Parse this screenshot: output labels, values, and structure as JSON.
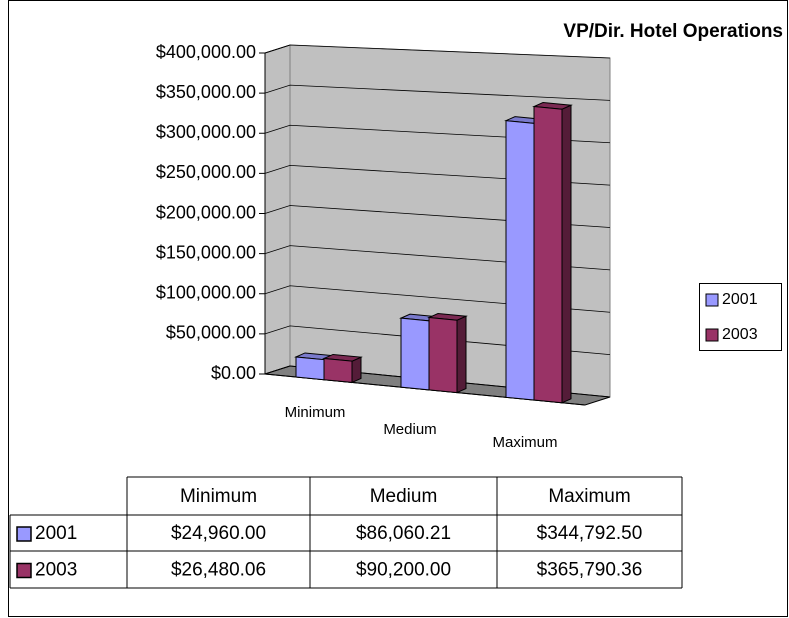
{
  "chart_data": {
    "type": "bar3d",
    "title": "VP/Dir. Hotel Operations",
    "categories": [
      "Minimum",
      "Medium",
      "Maximum"
    ],
    "series": [
      {
        "name": "2001",
        "color": "#9999ff",
        "values": [
          24960,
          86060.21,
          344792.5
        ],
        "value_labels": [
          "$24,960.00",
          "$86,060.21",
          "$344,792.50"
        ]
      },
      {
        "name": "2003",
        "color": "#993366",
        "values": [
          26480.06,
          90200,
          365790.36
        ],
        "value_labels": [
          "$26,480.06",
          "$90,200.00",
          "$365,790.36"
        ]
      }
    ],
    "ylim": [
      0,
      400000
    ],
    "yticks": [
      {
        "value": 0,
        "label": "$0.00"
      },
      {
        "value": 50000,
        "label": "$50,000.00"
      },
      {
        "value": 100000,
        "label": "$100,000.00"
      },
      {
        "value": 150000,
        "label": "$150,000.00"
      },
      {
        "value": 200000,
        "label": "$200,000.00"
      },
      {
        "value": 250000,
        "label": "$250,000.00"
      },
      {
        "value": 300000,
        "label": "$300,000.00"
      },
      {
        "value": 350000,
        "label": "$350,000.00"
      },
      {
        "value": 400000,
        "label": "$400,000.00"
      }
    ],
    "grid": true,
    "legend": "right"
  }
}
